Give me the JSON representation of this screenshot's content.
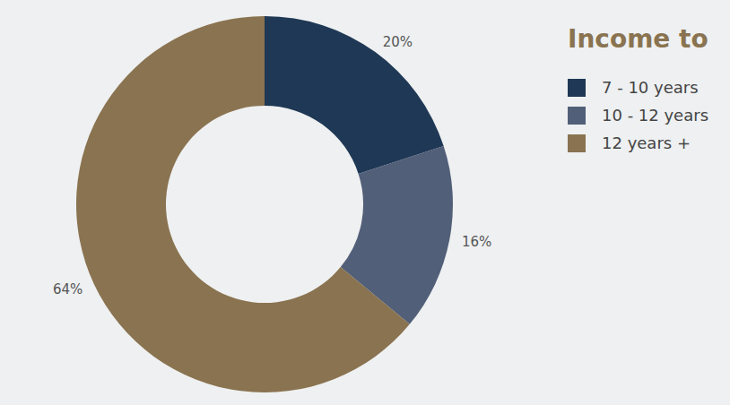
{
  "chart_data": {
    "type": "pie",
    "title": "Income to",
    "categories": [
      "7 - 10 years",
      "10 - 12 years",
      "12 years +"
    ],
    "values": [
      20,
      16,
      64
    ],
    "value_labels": [
      "20%",
      "16%",
      "64%"
    ],
    "colors": [
      "#1f3855",
      "#525f78",
      "#8a7350"
    ],
    "data_labels": true,
    "legend": "top-right"
  }
}
